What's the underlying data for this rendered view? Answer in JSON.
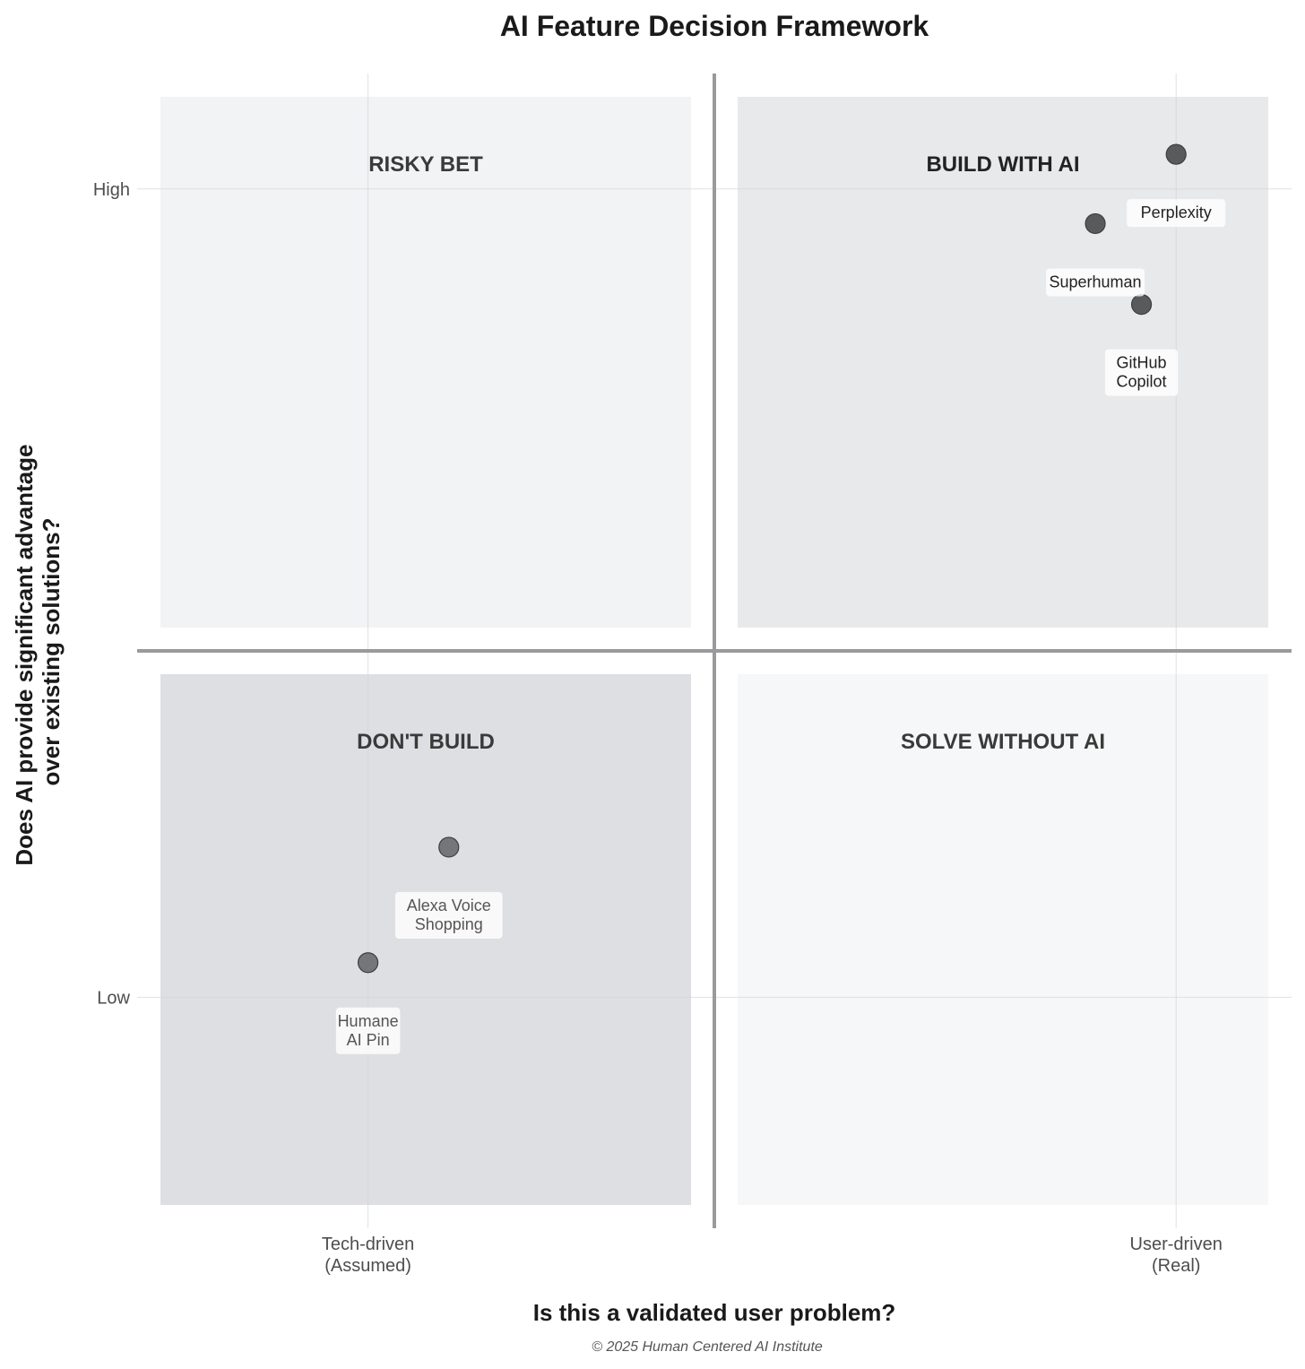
{
  "chart_data": {
    "type": "scatter",
    "title": "AI Feature Decision Framework",
    "xlabel": "Is this a validated user problem?",
    "ylabel": "Does AI provide significant advantage over existing solutions?",
    "ylabel_lines": [
      "Does AI provide significant advantage",
      "over existing solutions?"
    ],
    "xlim": [
      0,
      10
    ],
    "ylim": [
      0,
      10
    ],
    "x_ticks": [
      {
        "value": 2,
        "lines": [
          "Tech-driven",
          "(Assumed)"
        ]
      },
      {
        "value": 9,
        "lines": [
          "User-driven",
          "(Real)"
        ]
      }
    ],
    "y_ticks": [
      {
        "value": 2,
        "label": "Low"
      },
      {
        "value": 9,
        "label": "High"
      }
    ],
    "divider": {
      "x": 5,
      "y": 5
    },
    "grid": true,
    "quadrants": [
      {
        "name": "RISKY BET",
        "x_range": [
          0,
          5
        ],
        "y_range": [
          5,
          10
        ],
        "fill": "#f2f3f5",
        "label_color": "#3a3a3a"
      },
      {
        "name": "BUILD WITH AI",
        "x_range": [
          5,
          10
        ],
        "y_range": [
          5,
          10
        ],
        "fill": "#e8e9eb",
        "label_color": "#222222"
      },
      {
        "name": "DON'T BUILD",
        "x_range": [
          0,
          5
        ],
        "y_range": [
          0,
          5
        ],
        "fill": "#dedfe2",
        "label_color": "#3a3a3a"
      },
      {
        "name": "SOLVE WITHOUT AI",
        "x_range": [
          5,
          10
        ],
        "y_range": [
          0,
          5
        ],
        "fill": "#f6f7f8",
        "label_color": "#3a3a3a"
      }
    ],
    "points": [
      {
        "name": "Perplexity",
        "lines": [
          "Perplexity"
        ],
        "x": 9.0,
        "y": 9.3,
        "color": "#505254",
        "label_color": "#222222"
      },
      {
        "name": "Superhuman",
        "lines": [
          "Superhuman"
        ],
        "x": 8.3,
        "y": 8.7,
        "color": "#505254",
        "label_color": "#222222"
      },
      {
        "name": "GitHub Copilot",
        "lines": [
          "GitHub",
          "Copilot"
        ],
        "x": 8.7,
        "y": 8.0,
        "color": "#505254",
        "label_color": "#222222"
      },
      {
        "name": "Alexa Voice Shopping",
        "lines": [
          "Alexa Voice",
          "Shopping"
        ],
        "x": 2.7,
        "y": 3.3,
        "color": "#6f7072",
        "label_color": "#555555"
      },
      {
        "name": "Humane AI Pin",
        "lines": [
          "Humane",
          "AI Pin"
        ],
        "x": 2.0,
        "y": 2.3,
        "color": "#6f7072",
        "label_color": "#555555"
      }
    ]
  },
  "footer": {
    "copyright": "© 2025 Human Centered AI Institute"
  }
}
